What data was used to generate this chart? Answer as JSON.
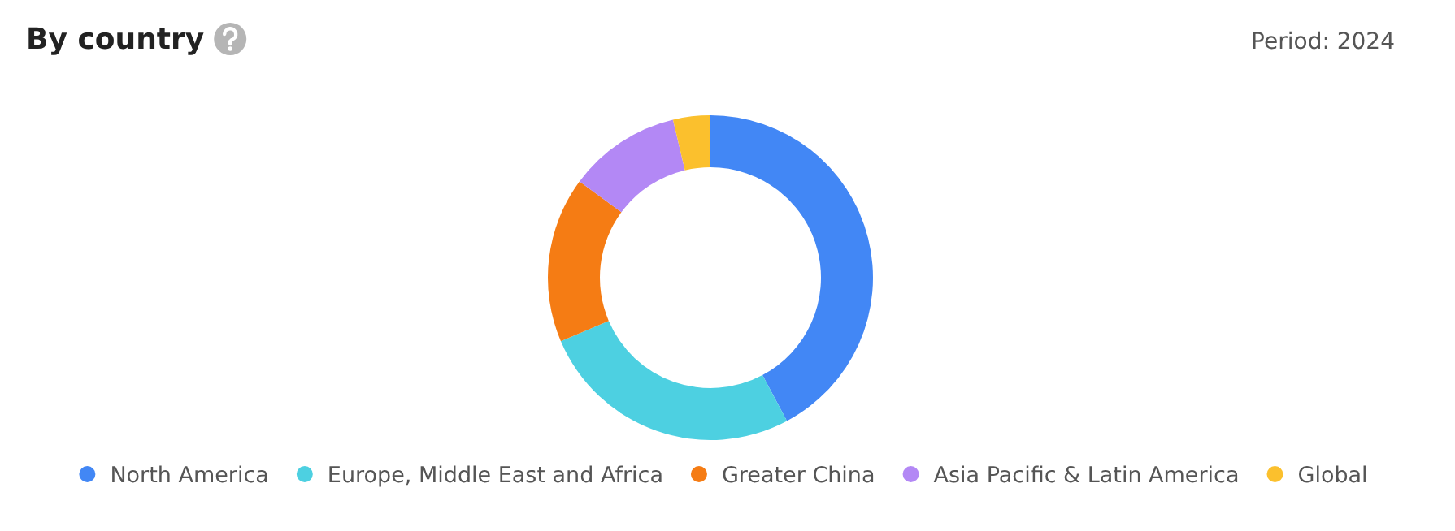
{
  "chart_data": {
    "type": "donut",
    "title": "By country",
    "annotations": [
      "Period: 2024"
    ],
    "categories": [
      "North America",
      "Europe, Middle East and Africa",
      "Greater China",
      "Asia Pacific & Latin America",
      "Global"
    ],
    "values": [
      42.2,
      26.4,
      16.5,
      11.2,
      3.7
    ],
    "colors": [
      "#4287f5",
      "#4dd0e1",
      "#f57c14",
      "#b388f5",
      "#fbc02d"
    ],
    "legend": "bottom"
  }
}
